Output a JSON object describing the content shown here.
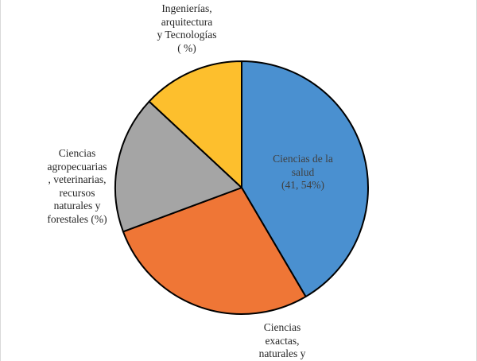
{
  "chart_data": {
    "type": "pie",
    "title": "",
    "legend": "none",
    "slices": [
      {
        "name": "Ciencias de la salud",
        "value": 41.54,
        "color": "#4a90d0",
        "label_lines": [
          "Ciencias de la",
          "salud",
          "(41, 54%)"
        ]
      },
      {
        "name": "Ciencias exactas, naturales y",
        "value": 27.8,
        "color": "#ef7636",
        "label_lines": [
          "Ciencias",
          "exactas,",
          "naturales y"
        ]
      },
      {
        "name": "Ciencias agropecuarias, veterinarias, recursos naturales y forestales",
        "value": 17.6,
        "color": "#a5a5a5",
        "label_lines": [
          "Ciencias",
          "agropecuarias",
          ", veterinarias,",
          "recursos",
          "naturales y",
          "forestales (%)"
        ]
      },
      {
        "name": "Ingenierías, arquitectura y Tecnologías",
        "value": 13.06,
        "color": "#fdbf2d",
        "label_lines": [
          "Ingenierías,",
          "arquitectura",
          "y Tecnologías",
          "( %)"
        ]
      }
    ]
  }
}
